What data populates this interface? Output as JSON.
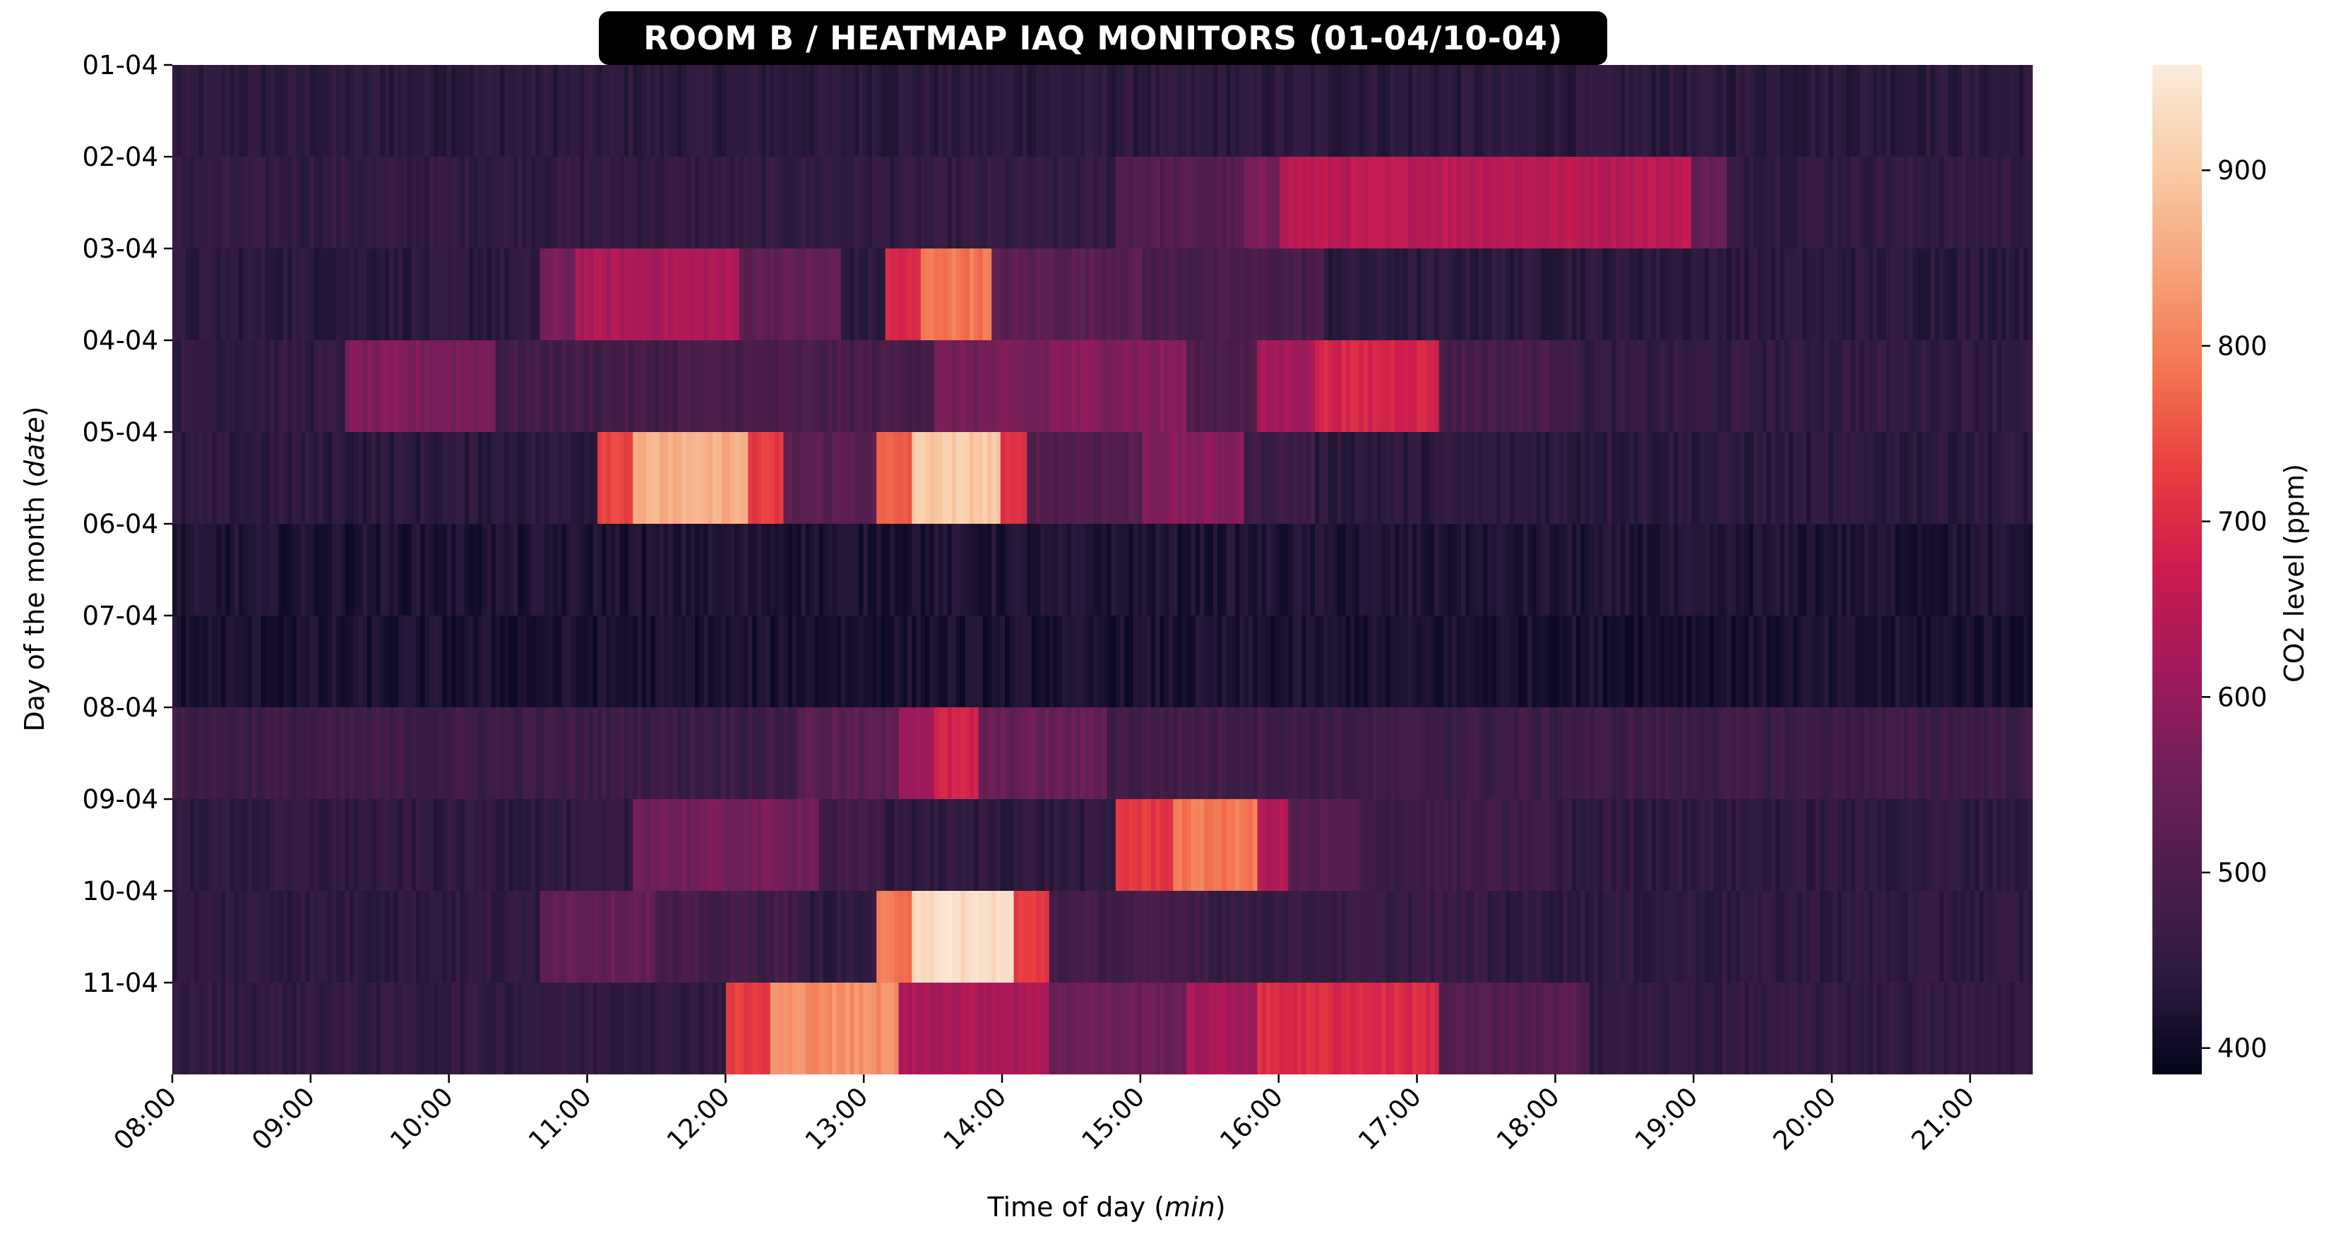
{
  "chart_data": {
    "type": "heatmap",
    "title": "ROOM B / HEATMAP IAQ MONITORS (01-04/10-04)",
    "xlabel_prefix": "Time of day (",
    "xlabel_unit": "min",
    "xlabel_suffix": ")",
    "ylabel_prefix": "Day of the month (",
    "ylabel_unit": "date",
    "ylabel_suffix": ")",
    "colorbar_label": "CO2 level (ppm)",
    "colorbar_ticks": [
      400,
      500,
      600,
      700,
      800,
      900
    ],
    "colorbar_range": [
      385,
      960
    ],
    "colormap": [
      "#03051a",
      "#2e1b3f",
      "#4d1f4a",
      "#701f57",
      "#a11a5b",
      "#cb1b4f",
      "#e83f3f",
      "#f37651",
      "#f6a47b",
      "#f8cca7",
      "#faebdd"
    ],
    "x_tick_labels": [
      "08:00",
      "09:00",
      "10:00",
      "11:00",
      "12:00",
      "13:00",
      "14:00",
      "15:00",
      "16:00",
      "17:00",
      "18:00",
      "19:00",
      "20:00",
      "21:00"
    ],
    "x_range_hours": [
      8.0,
      21.45
    ],
    "y_tick_labels": [
      "01-04",
      "02-04",
      "03-04",
      "04-04",
      "05-04",
      "06-04",
      "07-04",
      "08-04",
      "09-04",
      "10-04",
      "11-04"
    ],
    "rows": [
      {
        "baseline": 440,
        "segments": []
      },
      {
        "baseline": 450,
        "segments": [
          {
            "start": "14:50",
            "end": "15:45",
            "value": 510
          },
          {
            "start": "15:45",
            "end": "16:00",
            "value": 560
          },
          {
            "start": "16:00",
            "end": "19:00",
            "value": 650
          },
          {
            "start": "19:00",
            "end": "19:15",
            "value": 540
          }
        ]
      },
      {
        "baseline": 440,
        "segments": [
          {
            "start": "10:40",
            "end": "10:55",
            "value": 560
          },
          {
            "start": "10:55",
            "end": "12:05",
            "value": 630
          },
          {
            "start": "12:05",
            "end": "12:50",
            "value": 530
          },
          {
            "start": "13:10",
            "end": "13:25",
            "value": 690
          },
          {
            "start": "13:25",
            "end": "13:55",
            "value": 790
          },
          {
            "start": "13:55",
            "end": "15:00",
            "value": 520
          },
          {
            "start": "15:00",
            "end": "16:20",
            "value": 490
          }
        ]
      },
      {
        "baseline": 450,
        "segments": [
          {
            "start": "09:15",
            "end": "10:20",
            "value": 570
          },
          {
            "start": "10:20",
            "end": "11:40",
            "value": 480
          },
          {
            "start": "11:40",
            "end": "13:30",
            "value": 490
          },
          {
            "start": "13:30",
            "end": "14:20",
            "value": 560
          },
          {
            "start": "14:20",
            "end": "15:20",
            "value": 580
          },
          {
            "start": "15:20",
            "end": "15:50",
            "value": 500
          },
          {
            "start": "15:50",
            "end": "16:15",
            "value": 620
          },
          {
            "start": "16:15",
            "end": "17:10",
            "value": 690
          },
          {
            "start": "17:10",
            "end": "18:10",
            "value": 490
          }
        ]
      },
      {
        "baseline": 440,
        "segments": [
          {
            "start": "11:05",
            "end": "11:20",
            "value": 740
          },
          {
            "start": "11:20",
            "end": "12:10",
            "value": 860
          },
          {
            "start": "12:10",
            "end": "12:25",
            "value": 720
          },
          {
            "start": "12:25",
            "end": "13:05",
            "value": 520
          },
          {
            "start": "13:05",
            "end": "13:20",
            "value": 760
          },
          {
            "start": "13:20",
            "end": "14:00",
            "value": 900
          },
          {
            "start": "14:00",
            "end": "14:10",
            "value": 700
          },
          {
            "start": "14:10",
            "end": "15:00",
            "value": 510
          },
          {
            "start": "15:00",
            "end": "15:45",
            "value": 580
          },
          {
            "start": "15:45",
            "end": "16:15",
            "value": 470
          }
        ]
      },
      {
        "baseline": 420,
        "segments": []
      },
      {
        "baseline": 415,
        "segments": []
      },
      {
        "baseline": 470,
        "segments": [
          {
            "start": "12:30",
            "end": "13:15",
            "value": 520
          },
          {
            "start": "13:15",
            "end": "13:30",
            "value": 620
          },
          {
            "start": "13:30",
            "end": "13:50",
            "value": 680
          },
          {
            "start": "13:50",
            "end": "14:45",
            "value": 540
          },
          {
            "start": "14:45",
            "end": "16:00",
            "value": 480
          }
        ]
      },
      {
        "baseline": 445,
        "segments": [
          {
            "start": "11:20",
            "end": "12:40",
            "value": 560
          },
          {
            "start": "12:40",
            "end": "13:10",
            "value": 470
          },
          {
            "start": "14:50",
            "end": "15:15",
            "value": 720
          },
          {
            "start": "15:15",
            "end": "15:50",
            "value": 790
          },
          {
            "start": "15:50",
            "end": "16:05",
            "value": 640
          },
          {
            "start": "16:05",
            "end": "16:35",
            "value": 510
          },
          {
            "start": "16:35",
            "end": "18:00",
            "value": 470
          }
        ]
      },
      {
        "baseline": 445,
        "segments": [
          {
            "start": "10:40",
            "end": "11:30",
            "value": 540
          },
          {
            "start": "11:30",
            "end": "12:30",
            "value": 480
          },
          {
            "start": "13:05",
            "end": "13:20",
            "value": 790
          },
          {
            "start": "13:20",
            "end": "14:05",
            "value": 935
          },
          {
            "start": "14:05",
            "end": "14:20",
            "value": 720
          },
          {
            "start": "14:20",
            "end": "15:30",
            "value": 480
          },
          {
            "start": "15:30",
            "end": "17:30",
            "value": 460
          }
        ]
      },
      {
        "baseline": 450,
        "segments": [
          {
            "start": "12:00",
            "end": "12:20",
            "value": 720
          },
          {
            "start": "12:20",
            "end": "13:15",
            "value": 820
          },
          {
            "start": "13:15",
            "end": "14:20",
            "value": 630
          },
          {
            "start": "14:20",
            "end": "15:20",
            "value": 550
          },
          {
            "start": "15:20",
            "end": "15:50",
            "value": 620
          },
          {
            "start": "15:50",
            "end": "17:10",
            "value": 700
          },
          {
            "start": "17:10",
            "end": "18:15",
            "value": 510
          }
        ]
      }
    ]
  }
}
